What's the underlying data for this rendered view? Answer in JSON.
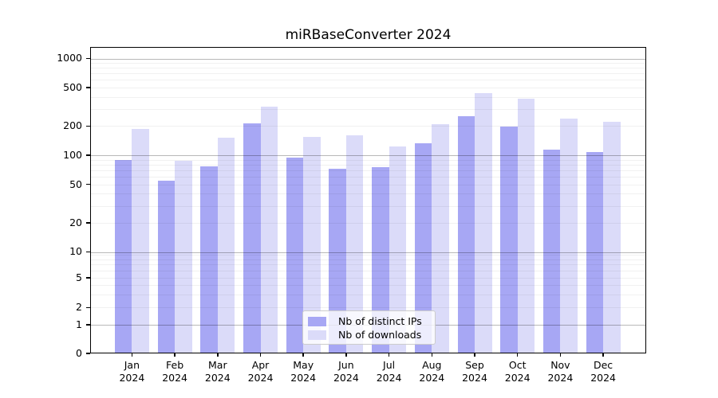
{
  "title": "miRBaseConverter 2024",
  "legend": {
    "ips_label": "Nb of distinct IPs",
    "downloads_label": "Nb of downloads"
  },
  "colors": {
    "ips_bar": "#a7a7f4",
    "downloads_bar": "#dbdbf9",
    "grid_major": "#b8b8b8",
    "grid_minor": "#f0f0f0",
    "axis": "#000000"
  },
  "chart_data": {
    "type": "bar",
    "title": "miRBaseConverter 2024",
    "x_tick_months": [
      "Jan",
      "Feb",
      "Mar",
      "Apr",
      "May",
      "Jun",
      "Jul",
      "Aug",
      "Sep",
      "Oct",
      "Nov",
      "Dec"
    ],
    "x_tick_year": "2024",
    "categories": [
      "Jan 2024",
      "Feb 2024",
      "Mar 2024",
      "Apr 2024",
      "May 2024",
      "Jun 2024",
      "Jul 2024",
      "Aug 2024",
      "Sep 2024",
      "Oct 2024",
      "Nov 2024",
      "Dec 2024"
    ],
    "series": [
      {
        "name": "Nb of distinct IPs",
        "color": "#a7a7f4",
        "values": [
          90,
          55,
          77,
          215,
          95,
          72,
          76,
          134,
          253,
          198,
          114,
          107
        ]
      },
      {
        "name": "Nb of downloads",
        "color": "#dbdbf9",
        "values": [
          187,
          88,
          151,
          320,
          156,
          160,
          123,
          210,
          440,
          382,
          240,
          220
        ]
      }
    ],
    "yscale": "symlog",
    "ylim": [
      0,
      1000
    ],
    "yticks": [
      0,
      1,
      2,
      5,
      10,
      20,
      50,
      100,
      200,
      500,
      1000
    ],
    "grid": true,
    "legend_position": "lower center"
  }
}
